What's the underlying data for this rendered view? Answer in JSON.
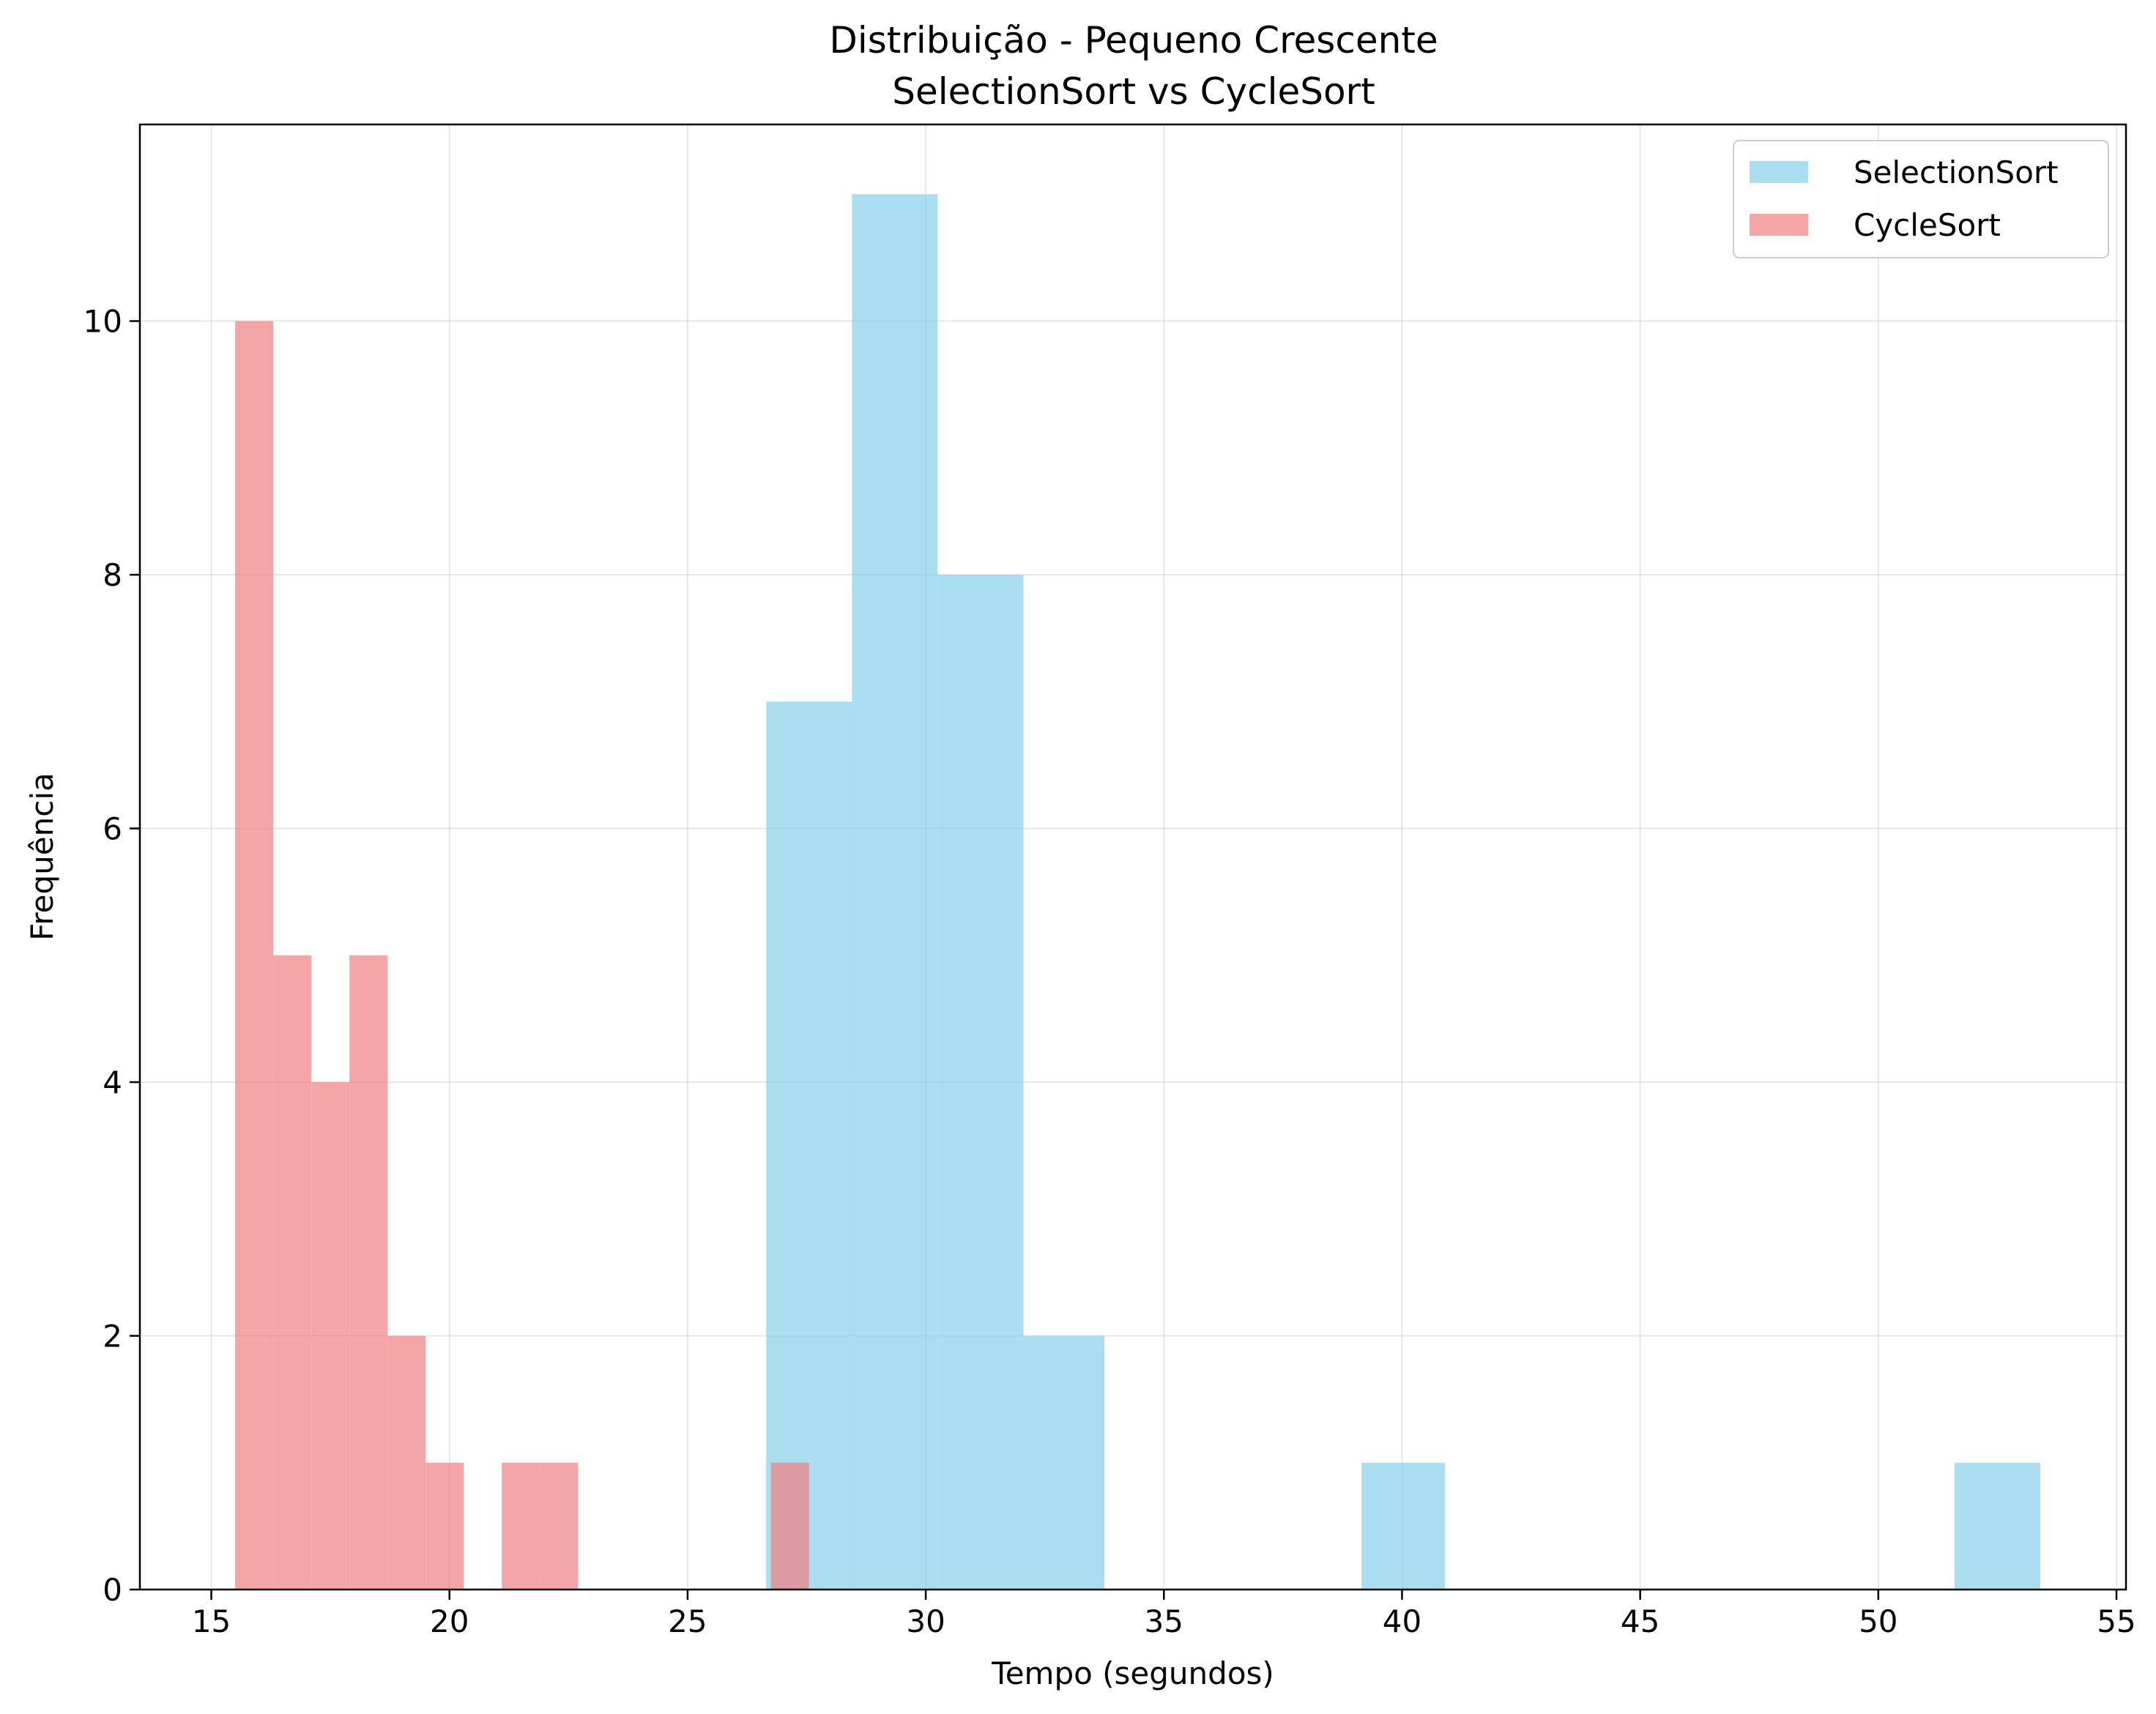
{
  "chart_data": {
    "type": "bar",
    "title": "Distribuição - Pequeno Crescente",
    "subtitle": "SelectionSort vs CycleSort",
    "xlabel": "Tempo (segundos)",
    "ylabel": "Frequência",
    "xlim": [
      13.5,
      55.2
    ],
    "ylim": [
      0,
      11.55
    ],
    "xticks": [
      15,
      20,
      25,
      30,
      35,
      40,
      45,
      50,
      55
    ],
    "yticks": [
      0,
      2,
      4,
      6,
      8,
      10
    ],
    "grid": true,
    "legend_position": "top-right",
    "series": [
      {
        "name": "SelectionSort",
        "color": "#87ceeb",
        "opacity": 0.7,
        "bins": [
          {
            "x0": 26.65,
            "x1": 28.45,
            "count": 7
          },
          {
            "x0": 28.45,
            "x1": 30.25,
            "count": 11
          },
          {
            "x0": 30.25,
            "x1": 32.05,
            "count": 8
          },
          {
            "x0": 32.05,
            "x1": 33.75,
            "count": 2
          },
          {
            "x0": 39.15,
            "x1": 40.9,
            "count": 1
          },
          {
            "x0": 51.6,
            "x1": 53.4,
            "count": 1
          }
        ]
      },
      {
        "name": "CycleSort",
        "color": "#f08080",
        "opacity": 0.7,
        "bins": [
          {
            "x0": 15.5,
            "x1": 16.3,
            "count": 10
          },
          {
            "x0": 16.3,
            "x1": 17.1,
            "count": 5
          },
          {
            "x0": 17.1,
            "x1": 17.9,
            "count": 4
          },
          {
            "x0": 17.9,
            "x1": 18.7,
            "count": 5
          },
          {
            "x0": 18.7,
            "x1": 19.5,
            "count": 2
          },
          {
            "x0": 19.5,
            "x1": 20.3,
            "count": 1
          },
          {
            "x0": 21.1,
            "x1": 21.9,
            "count": 1
          },
          {
            "x0": 21.9,
            "x1": 22.7,
            "count": 1
          },
          {
            "x0": 26.75,
            "x1": 27.55,
            "count": 1
          }
        ]
      }
    ]
  }
}
